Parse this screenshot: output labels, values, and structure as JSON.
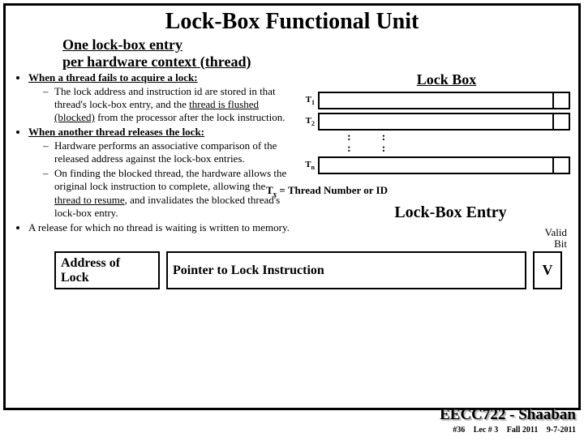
{
  "title": "Lock-Box Functional Unit",
  "subtitle_l1": "One lock-box entry",
  "subtitle_l2": "per hardware context (thread)",
  "bullets": {
    "b1_head": "When a thread fails to acquire a lock:",
    "b1_s1a": "The lock address and instruction id are stored in that thread's lock-box entry, and the ",
    "b1_s1b": "thread is flushed (blocked)",
    "b1_s1c": " from the processor after the lock instruction.",
    "b2_head": "When another thread releases the lock:",
    "b2_s1": "Hardware performs an associative comparison of the released address against the lock-box entries.",
    "b2_s2a": "On finding the blocked thread, the hardware allows the original lock instruction to complete, allowing the ",
    "b2_s2b": "thread to resume",
    "b2_s2c": ", and invalidates the blocked thread's lock-box entry.",
    "b3": "A release for which no thread is waiting is written to memory."
  },
  "lockbox": {
    "label": "Lock Box",
    "t1": "T",
    "t1s": "1",
    "t2": "T",
    "t2s": "2",
    "tn": "T",
    "tns": "n",
    "dots": ":",
    "tx_pre": "T",
    "tx_sub": "x",
    "tx_rest": " = Thread Number or ID",
    "entry_label": "Lock-Box Entry",
    "valid_l1": "Valid",
    "valid_l2": "Bit"
  },
  "entry": {
    "addr_l1": "Address of",
    "addr_l2": "Lock",
    "ptr": "Pointer to Lock Instruction",
    "v": "V"
  },
  "footer": {
    "course": "EECC722 - Shaaban",
    "slide": "#36",
    "lec": "Lec # 3",
    "term": "Fall 2011",
    "date": "9-7-2011"
  }
}
